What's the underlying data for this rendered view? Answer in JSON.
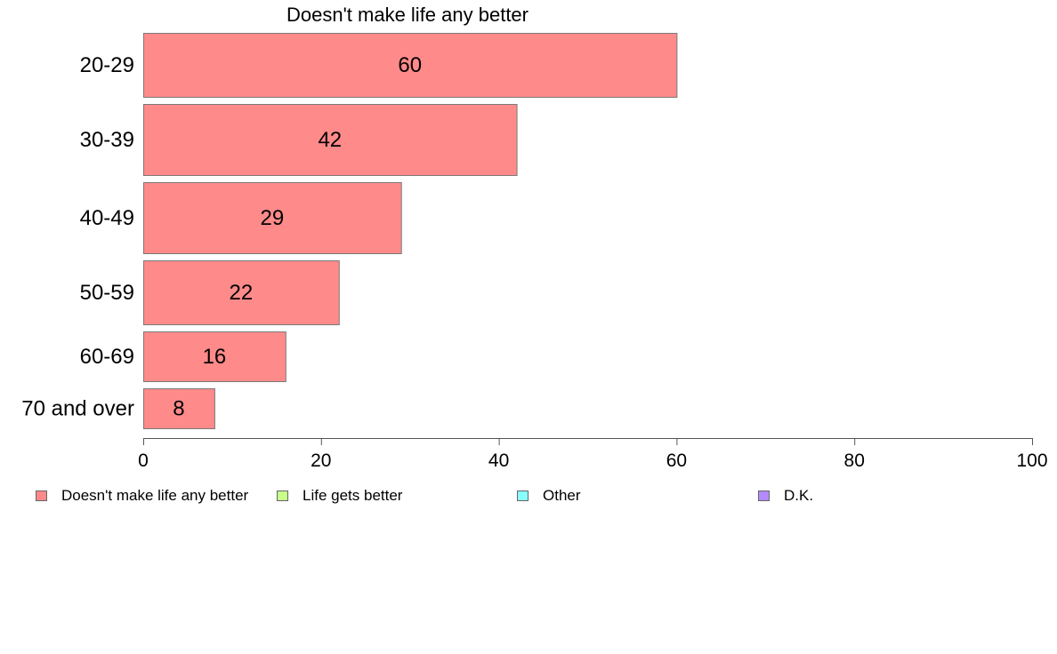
{
  "chart_data": {
    "type": "bar",
    "orientation": "horizontal",
    "title": "Doesn't make life any better",
    "categories": [
      "20-29",
      "30-39",
      "40-49",
      "50-59",
      "60-69",
      "70 and over"
    ],
    "series": [
      {
        "name": "Doesn't make life any better",
        "values": [
          60,
          42,
          29,
          22,
          16,
          8
        ]
      }
    ],
    "data_labels": [
      "60",
      "42",
      "29",
      "22",
      "16",
      "8"
    ],
    "xlim": [
      0,
      100
    ],
    "x_ticks": [
      "0",
      "20",
      "40",
      "60",
      "80",
      "100"
    ],
    "grid": false,
    "legend_position": "bottom",
    "legend": [
      {
        "label": "Doesn't make life any better",
        "color": "#ff8a8a"
      },
      {
        "label": "Life gets better",
        "color": "#c8ff8a"
      },
      {
        "label": "Other",
        "color": "#8affff"
      },
      {
        "label": "D.K.",
        "color": "#b48aff"
      }
    ],
    "colors": {
      "bar": "#ff8a8a",
      "bar_border": "#7a7a7a",
      "axis": "#555555"
    }
  }
}
